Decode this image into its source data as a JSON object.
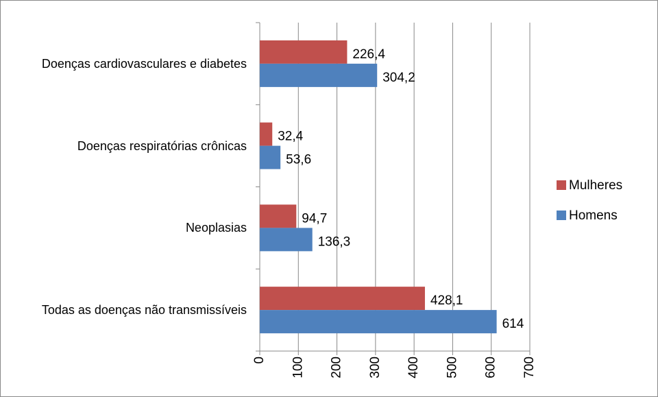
{
  "chart_data": {
    "type": "bar",
    "orientation": "horizontal",
    "categories": [
      "Doenças cardiovasculares e diabetes",
      "Doenças respiratórias crônicas",
      "Neoplasias",
      "Todas as doenças não transmissíveis"
    ],
    "series": [
      {
        "name": "Mulheres",
        "color": "#c0504d",
        "values": [
          226.4,
          32.4,
          94.7,
          428.1
        ],
        "value_labels": [
          "226,4",
          "32,4",
          "94,7",
          "428,1"
        ]
      },
      {
        "name": "Homens",
        "color": "#4f81bd",
        "values": [
          304.2,
          53.6,
          136.3,
          614
        ],
        "value_labels": [
          "304,2",
          "53,6",
          "136,3",
          "614"
        ]
      }
    ],
    "xlim": [
      0,
      700
    ],
    "xticks": [
      0,
      100,
      200,
      300,
      400,
      500,
      600,
      700
    ],
    "grid": true,
    "legend": "right"
  }
}
